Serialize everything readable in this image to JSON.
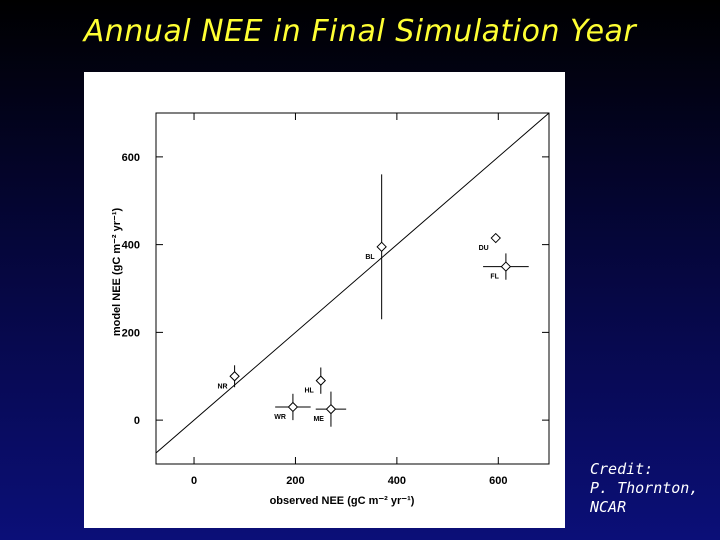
{
  "slide": {
    "title": "Annual NEE in Final Simulation Year",
    "credit_lines": [
      "Credit:",
      "P. Thornton,",
      "NCAR"
    ]
  },
  "colors": {
    "background_top": "#000000",
    "background_bottom": "#0b0f78",
    "title": "#ffff33",
    "credit": "#ffffff",
    "plot_background": "#ffffff",
    "marks": "#000000"
  },
  "chart_data": {
    "type": "scatter",
    "title": "",
    "xlabel": "observed NEE (gC m⁻² yr⁻¹)",
    "ylabel": "model NEE (gC m⁻² yr⁻¹)",
    "xlim": [
      -75,
      700
    ],
    "ylim": [
      -100,
      700
    ],
    "xticks": [
      0,
      200,
      400,
      600
    ],
    "yticks": [
      0,
      200,
      400,
      600
    ],
    "grid": false,
    "one_to_one_line": true,
    "marker": "diamond",
    "points": [
      {
        "label": "NR",
        "x": 80,
        "y": 100,
        "x_err": 0,
        "y_err": 25
      },
      {
        "label": "WR",
        "x": 195,
        "y": 30,
        "x_err": 35,
        "y_err": 30
      },
      {
        "label": "HL",
        "x": 250,
        "y": 90,
        "x_err": 0,
        "y_err": 30
      },
      {
        "label": "ME",
        "x": 270,
        "y": 25,
        "x_err": 30,
        "y_err": 40
      },
      {
        "label": "BL",
        "x": 370,
        "y": 395,
        "x_err": 0,
        "y_err": 165
      },
      {
        "label": "DU",
        "x": 595,
        "y": 415,
        "x_err": 0,
        "y_err": 0
      },
      {
        "label": "FL",
        "x": 615,
        "y": 350,
        "x_err": 45,
        "y_err": 30
      }
    ]
  }
}
